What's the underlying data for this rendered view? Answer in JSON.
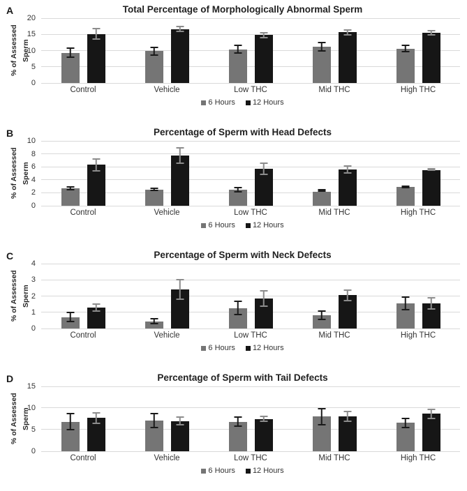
{
  "colors": {
    "series_6h": "#757575",
    "series_12h": "#161616",
    "error_on_gray": "#1a1a1a",
    "error_on_black": "#8c8c8c",
    "gridline": "#d9d9d9",
    "text": "#262626",
    "background": "#ffffff"
  },
  "chart_data": [
    {
      "type": "bar",
      "panel": "A",
      "title": "Total Percentage of Morphologically Abnormal Sperm",
      "xlabel": "",
      "ylabel": "% of Assessed Sperm",
      "categories": [
        "Control",
        "Vehicle",
        "Low THC",
        "Mid THC",
        "High THC"
      ],
      "ylim": [
        0,
        20
      ],
      "yticks": [
        0,
        5,
        10,
        15,
        20
      ],
      "grid": true,
      "legend_position": "bottom",
      "series": [
        {
          "name": "6 Hours",
          "color": "#757575",
          "error_color": "#1a1a1a",
          "values": [
            9.3,
            9.8,
            10.4,
            11.2,
            10.6
          ],
          "errors": [
            1.6,
            1.4,
            1.4,
            1.5,
            1.2
          ]
        },
        {
          "name": "12 Hours",
          "color": "#161616",
          "error_color": "#8c8c8c",
          "values": [
            15.1,
            16.6,
            14.8,
            15.6,
            15.5
          ],
          "errors": [
            1.8,
            1.0,
            1.0,
            0.9,
            0.9
          ]
        }
      ]
    },
    {
      "type": "bar",
      "panel": "B",
      "title": "Percentage of Sperm with Head Defects",
      "xlabel": "",
      "ylabel": "% of Assessed Sperm",
      "categories": [
        "Control",
        "Vehicle",
        "Low THC",
        "Mid THC",
        "High THC"
      ],
      "ylim": [
        0,
        10
      ],
      "yticks": [
        0,
        2,
        4,
        6,
        8,
        10
      ],
      "grid": true,
      "legend_position": "bottom",
      "series": [
        {
          "name": "6 Hours",
          "color": "#757575",
          "error_color": "#1a1a1a",
          "values": [
            2.7,
            2.5,
            2.5,
            2.2,
            2.9
          ],
          "errors": [
            0.35,
            0.25,
            0.45,
            0.1,
            0.25
          ]
        },
        {
          "name": "12 Hours",
          "color": "#161616",
          "error_color": "#8c8c8c",
          "values": [
            6.3,
            7.7,
            5.7,
            5.6,
            5.45
          ],
          "errors": [
            1.0,
            1.3,
            1.0,
            0.6,
            0.1
          ]
        }
      ]
    },
    {
      "type": "bar",
      "panel": "C",
      "title": "Percentage of Sperm with Neck Defects",
      "xlabel": "",
      "ylabel": "% of Assessed Sperm",
      "categories": [
        "Control",
        "Vehicle",
        "Low THC",
        "Mid THC",
        "High THC"
      ],
      "ylim": [
        0,
        4
      ],
      "yticks": [
        0,
        1,
        2,
        3,
        4
      ],
      "grid": true,
      "legend_position": "bottom",
      "series": [
        {
          "name": "6 Hours",
          "color": "#757575",
          "error_color": "#1a1a1a",
          "values": [
            0.7,
            0.45,
            1.25,
            0.8,
            1.55
          ],
          "errors": [
            0.32,
            0.18,
            0.45,
            0.3,
            0.43
          ]
        },
        {
          "name": "12 Hours",
          "color": "#161616",
          "error_color": "#8c8c8c",
          "values": [
            1.3,
            2.4,
            1.85,
            2.05,
            1.55
          ],
          "errors": [
            0.27,
            0.65,
            0.5,
            0.37,
            0.37
          ]
        }
      ]
    },
    {
      "type": "bar",
      "panel": "D",
      "title": "Percentage of Sperm with Tail Defects",
      "xlabel": "",
      "ylabel": "% of Assessed Sperm",
      "categories": [
        "Control",
        "Vehicle",
        "Low THC",
        "Mid THC",
        "High THC"
      ],
      "ylim": [
        0,
        15
      ],
      "yticks": [
        0,
        5,
        10,
        15
      ],
      "grid": true,
      "legend_position": "bottom",
      "series": [
        {
          "name": "6 Hours",
          "color": "#757575",
          "error_color": "#1a1a1a",
          "values": [
            6.8,
            7.1,
            6.8,
            8.0,
            6.6
          ],
          "errors": [
            2.0,
            1.7,
            1.2,
            2.0,
            1.2
          ]
        },
        {
          "name": "12 Hours",
          "color": "#161616",
          "error_color": "#8c8c8c",
          "values": [
            7.7,
            7.0,
            7.5,
            8.1,
            8.7
          ],
          "errors": [
            1.4,
            1.1,
            0.8,
            1.3,
            1.2
          ]
        }
      ]
    }
  ]
}
